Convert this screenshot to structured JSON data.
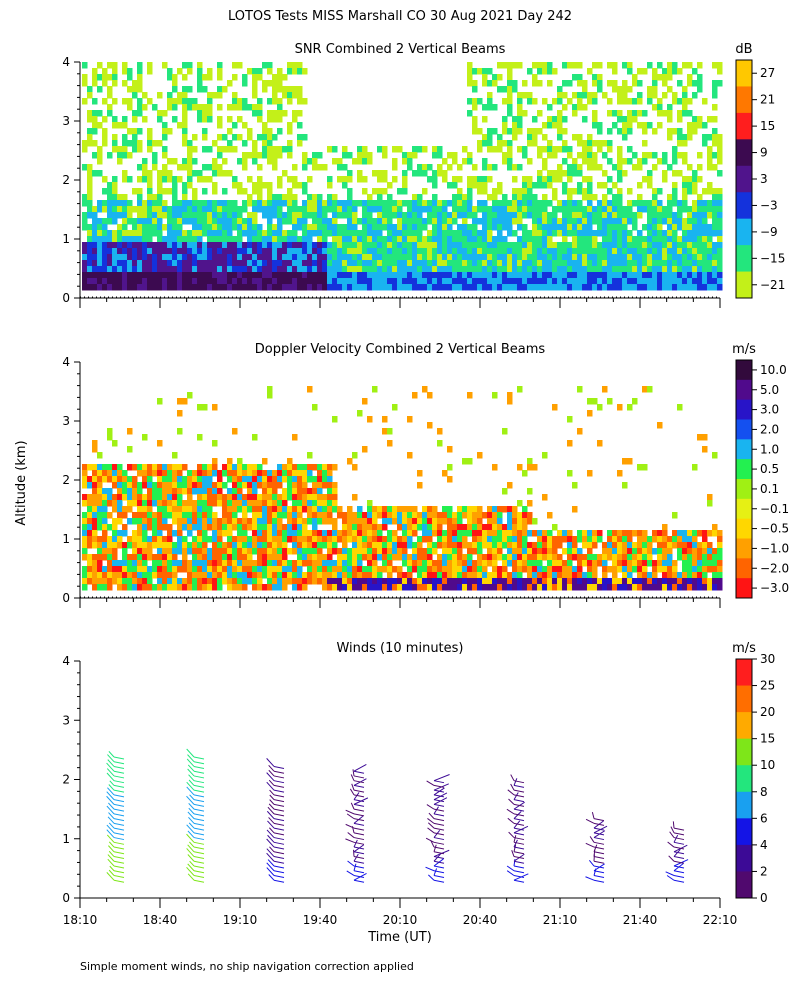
{
  "figure": {
    "title": "LOTOS Tests MISS Marshall CO  30 Aug 2021 Day 242",
    "ylabel": "Altitude (km)",
    "xlabel": "Time (UT)",
    "footnote": "Simple moment winds, no ship navigation correction applied"
  },
  "colors": {
    "palette": [
      "#000000",
      "#4b0a5a",
      "#2a0a8c",
      "#0a14e6",
      "#14a0f0",
      "#19e68c",
      "#7ee619",
      "#c8f014",
      "#ffff00",
      "#ffa000",
      "#ff6400",
      "#ff1414"
    ]
  },
  "chart_data": [
    {
      "type": "heatmap",
      "title": "SNR Combined 2 Vertical Beams",
      "x": [
        "18:10",
        "18:40",
        "19:10",
        "19:40",
        "20:10",
        "20:40",
        "21:10",
        "21:40",
        "22:10"
      ],
      "xlim": [
        "18:10",
        "22:10"
      ],
      "ylim": [
        0,
        4
      ],
      "yticks": [
        0,
        1,
        2,
        3,
        4
      ],
      "colorbar": {
        "unit": "dB",
        "ticks": [
          "27",
          "21",
          "15",
          "9",
          "3",
          "−3",
          "−9",
          "−15",
          "−21"
        ],
        "colors": [
          "#ffc800",
          "#ff7800",
          "#ff1e1e",
          "#3c0a50",
          "#50148c",
          "#1432dc",
          "#19b4f0",
          "#23e67d",
          "#c3f019"
        ]
      },
      "description_of_field": "Strong echo 9–15 dB below ~1 km before 19:40, −3 to −9 dB layer near 0.4 km afterwards, −15 to −21 dB scattered returns up to 4 km"
    },
    {
      "type": "heatmap",
      "title": "Doppler Velocity Combined 2 Vertical Beams",
      "x": [
        "18:10",
        "18:40",
        "19:10",
        "19:40",
        "20:10",
        "20:40",
        "21:10",
        "21:40",
        "22:10"
      ],
      "xlim": [
        "18:10",
        "22:10"
      ],
      "ylim": [
        0,
        4
      ],
      "yticks": [
        0,
        1,
        2,
        3,
        4
      ],
      "colorbar": {
        "unit": "m/s",
        "ticks": [
          "10.0",
          "5.0",
          "3.0",
          "2.0",
          "1.0",
          "0.5",
          "0.1",
          "−0.1",
          "−0.5",
          "−1.0",
          "−2.0",
          "−3.0"
        ],
        "colors": [
          "#320a3c",
          "#500a8c",
          "#2814c8",
          "#1450f0",
          "#19b4f0",
          "#23f050",
          "#a0f014",
          "#e6f014",
          "#ffd700",
          "#ffa000",
          "#ff6400",
          "#ff1414"
        ]
      }
    },
    {
      "type": "scatter",
      "title": "Winds (10 minutes)",
      "x": [
        "18:10",
        "18:40",
        "19:10",
        "19:40",
        "20:10",
        "20:40",
        "21:10",
        "21:40",
        "22:10"
      ],
      "xlim": [
        "18:10",
        "22:10"
      ],
      "ylim": [
        0,
        4
      ],
      "yticks": [
        0,
        1,
        2,
        3,
        4
      ],
      "profile_times": [
        "18:25",
        "18:55",
        "19:25",
        "19:55",
        "20:25",
        "20:55",
        "21:25",
        "21:55"
      ],
      "colorbar": {
        "unit": "m/s",
        "ticks": [
          "30",
          "25",
          "20",
          "15",
          "10",
          "8",
          "6",
          "4",
          "2",
          "0"
        ],
        "colors": [
          "#ff1e1e",
          "#ff6e00",
          "#ffaa00",
          "#7ee619",
          "#23e67d",
          "#19a0f0",
          "#1414e6",
          "#3c0a96",
          "#50096e",
          "#000000"
        ]
      }
    }
  ]
}
